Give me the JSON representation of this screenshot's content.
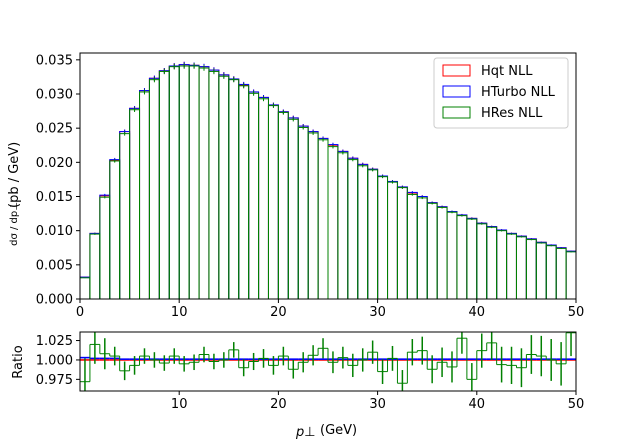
{
  "chart_data": [
    {
      "type": "line",
      "panel": "main",
      "drawstyle": "steps",
      "xlim": [
        0,
        50
      ],
      "ylim": [
        0,
        0.036
      ],
      "xticks": [
        "0",
        "10",
        "20",
        "30",
        "40",
        "50"
      ],
      "yticks": [
        "0.000",
        "0.005",
        "0.010",
        "0.015",
        "0.020",
        "0.025",
        "0.030",
        "0.035"
      ],
      "ylabel_frac": "dσ / dp⊥",
      "ylabel_text": "(pb / GeV)",
      "legend_position": "upper right",
      "bin_edges": [
        0,
        1,
        2,
        3,
        4,
        5,
        6,
        7,
        8,
        9,
        10,
        11,
        12,
        13,
        14,
        15,
        16,
        17,
        18,
        19,
        20,
        21,
        22,
        23,
        24,
        25,
        26,
        27,
        28,
        29,
        30,
        31,
        32,
        33,
        34,
        35,
        36,
        37,
        38,
        39,
        40,
        41,
        42,
        43,
        44,
        45,
        46,
        47,
        48,
        49,
        50
      ],
      "series": [
        {
          "name": "Hqt NLL",
          "color": "#ff0000",
          "values": [
            0.0032,
            0.0096,
            0.0151,
            0.0203,
            0.0245,
            0.0279,
            0.0305,
            0.0323,
            0.0334,
            0.0341,
            0.0343,
            0.0342,
            0.034,
            0.0335,
            0.0328,
            0.0322,
            0.0313,
            0.0303,
            0.0295,
            0.0284,
            0.0274,
            0.0265,
            0.0253,
            0.0245,
            0.0235,
            0.0225,
            0.0216,
            0.0206,
            0.0197,
            0.019,
            0.018,
            0.0172,
            0.0164,
            0.0155,
            0.015,
            0.0141,
            0.0135,
            0.0128,
            0.0123,
            0.0118,
            0.0111,
            0.0106,
            0.0101,
            0.0096,
            0.0092,
            0.0088,
            0.0083,
            0.0079,
            0.0075,
            0.007
          ]
        },
        {
          "name": "HTurbo NLL",
          "color": "#0000ff",
          "values": [
            0.0032,
            0.0096,
            0.0152,
            0.0204,
            0.0245,
            0.0279,
            0.0305,
            0.0323,
            0.0334,
            0.0341,
            0.0343,
            0.0342,
            0.034,
            0.0335,
            0.0328,
            0.0322,
            0.0314,
            0.0303,
            0.0295,
            0.0284,
            0.0274,
            0.0265,
            0.0253,
            0.0245,
            0.0235,
            0.0226,
            0.0216,
            0.0206,
            0.0197,
            0.019,
            0.018,
            0.0172,
            0.0164,
            0.0156,
            0.015,
            0.0141,
            0.0135,
            0.0128,
            0.0123,
            0.0118,
            0.0111,
            0.0106,
            0.0101,
            0.0096,
            0.0092,
            0.0088,
            0.0083,
            0.0079,
            0.0075,
            0.007
          ]
        },
        {
          "name": "HRes NLL",
          "color": "#008000",
          "values": [
            0.0031,
            0.0095,
            0.0149,
            0.0202,
            0.0242,
            0.0277,
            0.0303,
            0.0321,
            0.0333,
            0.034,
            0.0341,
            0.0341,
            0.0338,
            0.0333,
            0.0326,
            0.0321,
            0.0312,
            0.0301,
            0.0293,
            0.0283,
            0.0273,
            0.0263,
            0.0251,
            0.0243,
            0.0233,
            0.0223,
            0.0214,
            0.0204,
            0.0195,
            0.0189,
            0.0179,
            0.0171,
            0.0163,
            0.0153,
            0.0148,
            0.014,
            0.0134,
            0.0127,
            0.0122,
            0.0117,
            0.011,
            0.0105,
            0.01,
            0.0095,
            0.0091,
            0.0087,
            0.0082,
            0.0078,
            0.0074,
            0.0069
          ]
        }
      ]
    },
    {
      "type": "line",
      "panel": "ratio",
      "drawstyle": "steps",
      "xlim": [
        0,
        50
      ],
      "ylim": [
        0.96,
        1.036
      ],
      "xticks": [
        "10",
        "20",
        "30",
        "40",
        "50"
      ],
      "yticks": [
        "0.975",
        "1.000",
        "1.025"
      ],
      "xlabel_var": "p⊥",
      "xlabel_unit": "(GeV)",
      "ylabel": "Ratio",
      "bin_edges": [
        0,
        1,
        2,
        3,
        4,
        5,
        6,
        7,
        8,
        9,
        10,
        11,
        12,
        13,
        14,
        15,
        16,
        17,
        18,
        19,
        20,
        21,
        22,
        23,
        24,
        25,
        26,
        27,
        28,
        29,
        30,
        31,
        32,
        33,
        34,
        35,
        36,
        37,
        38,
        39,
        40,
        41,
        42,
        43,
        44,
        45,
        46,
        47,
        48,
        49,
        50
      ],
      "series": [
        {
          "name": "Hqt NLL",
          "color": "#ff0000",
          "values": [
            1.0,
            1.0,
            1.0,
            1.0,
            1.0,
            1.0,
            1.0,
            1.0,
            1.0,
            1.0,
            1.0,
            1.0,
            1.0,
            1.0,
            1.0,
            1.0,
            1.0,
            1.0,
            1.0,
            1.0,
            1.0,
            1.0,
            1.0,
            1.0,
            1.0,
            1.0,
            1.0,
            1.0,
            1.0,
            1.0,
            1.0,
            1.0,
            1.0,
            1.0,
            1.0,
            1.0,
            1.0,
            1.0,
            1.0,
            1.0,
            1.0,
            1.0,
            1.0,
            1.0,
            1.0,
            1.0,
            1.0,
            1.0,
            1.0,
            1.0
          ]
        },
        {
          "name": "HTurbo NLL",
          "color": "#0000ff",
          "values": [
            1.003,
            1.002,
            1.002,
            1.002,
            1.001,
            1.001,
            1.001,
            1.001,
            1.001,
            1.001,
            1.001,
            1.001,
            1.001,
            1.001,
            1.001,
            1.001,
            1.001,
            1.001,
            1.001,
            1.001,
            1.001,
            1.001,
            1.001,
            1.001,
            1.001,
            1.001,
            1.001,
            1.001,
            1.001,
            1.001,
            1.001,
            1.001,
            1.001,
            1.001,
            1.001,
            1.001,
            1.001,
            1.001,
            1.001,
            1.001,
            1.001,
            1.001,
            1.001,
            1.001,
            1.001,
            1.001,
            1.001,
            1.001,
            1.001,
            1.001
          ]
        },
        {
          "name": "HRes NLL",
          "color": "#008000",
          "values": [
            0.972,
            1.02,
            1.008,
            1.005,
            0.986,
            0.993,
            1.005,
            1.0,
            0.996,
            1.005,
            0.995,
            0.997,
            1.007,
            0.998,
            1.0,
            1.013,
            0.99,
            0.998,
            1.002,
            0.993,
            1.005,
            0.988,
            0.997,
            1.006,
            1.015,
            0.997,
            1.003,
            0.993,
            1.0,
            1.01,
            0.985,
            1.002,
            0.97,
            1.01,
            1.012,
            0.988,
            0.997,
            0.991,
            1.028,
            0.975,
            1.012,
            1.022,
            0.994,
            0.993,
            0.99,
            1.007,
            1.005,
            1.0,
            0.995,
            1.035
          ],
          "errors": [
            0.03,
            0.025,
            0.02,
            0.012,
            0.012,
            0.012,
            0.01,
            0.01,
            0.01,
            0.01,
            0.01,
            0.01,
            0.01,
            0.01,
            0.01,
            0.01,
            0.011,
            0.011,
            0.012,
            0.012,
            0.012,
            0.012,
            0.013,
            0.013,
            0.013,
            0.014,
            0.014,
            0.015,
            0.015,
            0.015,
            0.016,
            0.016,
            0.017,
            0.017,
            0.018,
            0.018,
            0.019,
            0.02,
            0.02,
            0.021,
            0.022,
            0.022,
            0.023,
            0.024,
            0.025,
            0.025,
            0.026,
            0.027,
            0.028,
            0.03
          ]
        }
      ]
    }
  ]
}
